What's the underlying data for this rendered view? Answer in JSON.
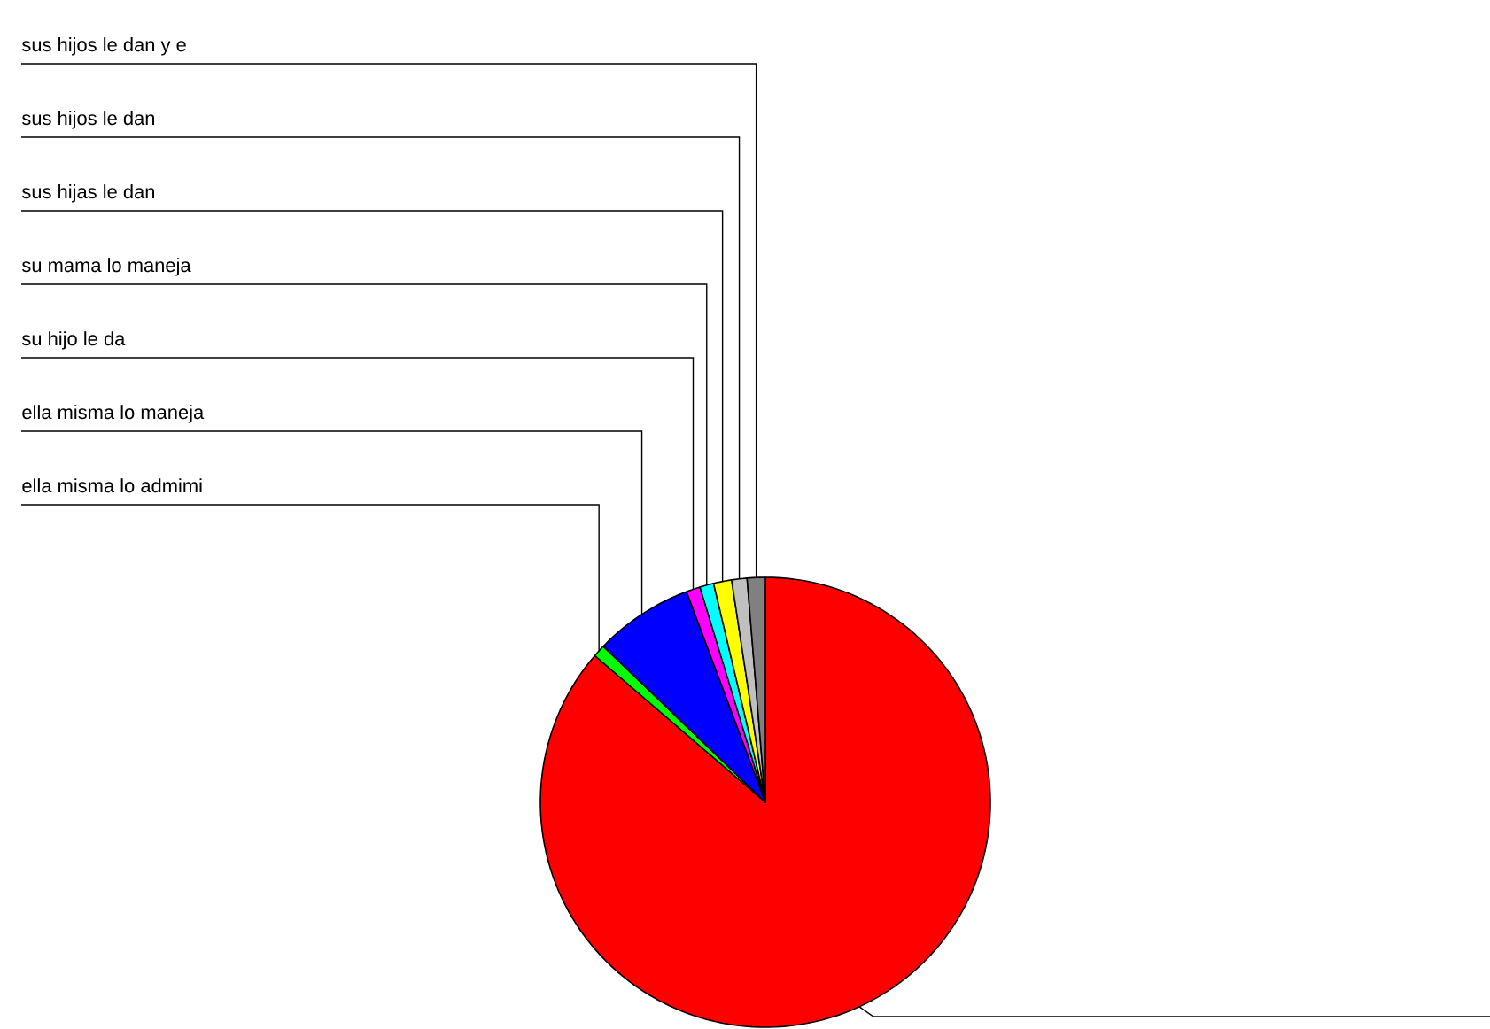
{
  "chart_data": {
    "type": "pie",
    "categories": [
      null,
      "ella misma lo admimi",
      "ella misma lo maneja",
      "su hijo le da",
      "su mama lo maneja",
      "sus hijas le dan",
      "sus hijos le dan",
      "sus hijos le dan y e"
    ],
    "values": [
      86.3,
      0.9,
      7.1,
      1.0,
      1.0,
      1.3,
      1.1,
      1.3
    ],
    "colors": [
      "#ff0000",
      "#00ff00",
      "#0000ff",
      "#ff00ff",
      "#00ffff",
      "#ffff00",
      "#c0c0c0",
      "#808080"
    ]
  }
}
